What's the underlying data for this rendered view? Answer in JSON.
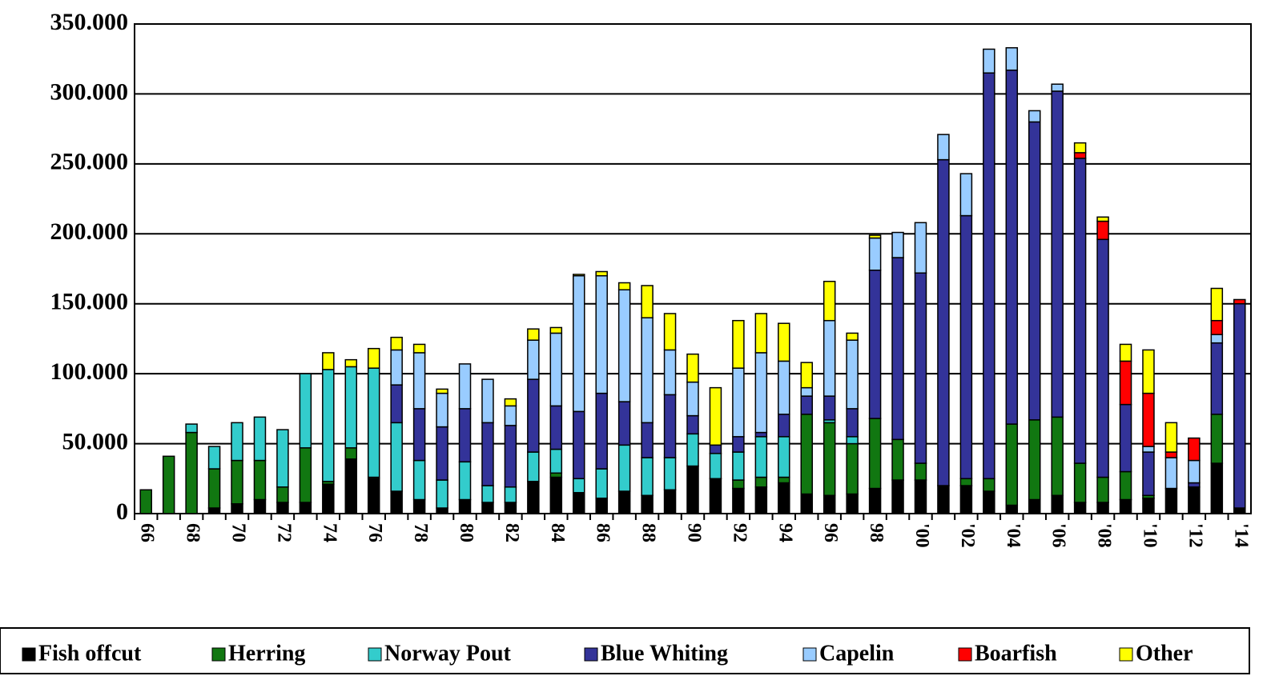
{
  "chart_data": {
    "type": "stacked_bar",
    "categories": [
      "66",
      null,
      "68",
      null,
      "70",
      null,
      "72",
      null,
      "74",
      null,
      "76",
      null,
      "78",
      null,
      "80",
      null,
      "82",
      null,
      "84",
      null,
      "86",
      null,
      "88",
      null,
      "90",
      null,
      "92",
      null,
      "94",
      null,
      "96",
      null,
      "98",
      null,
      "'00",
      null,
      "'02",
      null,
      "'04",
      null,
      "'06",
      null,
      "'08",
      null,
      "'10",
      null,
      "'12",
      null,
      "'14"
    ],
    "ylim": [
      0,
      350000
    ],
    "yticks": [
      0,
      {
        "value": 50000,
        "label": "50.000"
      },
      {
        "value": 100000,
        "label": "100.000"
      },
      {
        "value": 150000,
        "label": "150.000"
      },
      {
        "value": 200000,
        "label": "200.000"
      },
      {
        "value": 250000,
        "label": "250.000"
      },
      {
        "value": 300000,
        "label": "300.000"
      },
      {
        "value": 350000,
        "label": "350.000"
      }
    ],
    "grid": true,
    "legend": "bottom",
    "series": [
      {
        "name": "Fish offcut",
        "color": "#000000",
        "values": [
          0,
          0,
          0,
          4000,
          7000,
          10000,
          8000,
          8000,
          21000,
          39000,
          25000,
          16000,
          10000,
          4000,
          10000,
          8000,
          8000,
          23000,
          26000,
          15000,
          11000,
          16000,
          13000,
          17000,
          34000,
          25000,
          18000,
          19000,
          22000,
          14000,
          13000,
          14000,
          18000,
          24000,
          24000,
          20000,
          20000,
          16000,
          6000,
          10000,
          13000,
          8000,
          8000,
          10000,
          11000,
          18000,
          19000,
          36000,
          4000
        ]
      },
      {
        "name": "Herring",
        "color": "#117711",
        "values": [
          17000,
          41000,
          58000,
          28000,
          31000,
          28000,
          11000,
          39000,
          2000,
          8000,
          1000,
          0,
          0,
          0,
          0,
          0,
          0,
          0,
          3000,
          0,
          0,
          0,
          0,
          0,
          0,
          0,
          6000,
          7000,
          4000,
          57000,
          52000,
          36000,
          50000,
          29000,
          12000,
          0,
          5000,
          9000,
          58000,
          57000,
          56000,
          28000,
          18000,
          20000,
          2000,
          0,
          0,
          35000,
          0
        ]
      },
      {
        "name": "Norway Pout",
        "color": "#33cccc",
        "values": [
          0,
          0,
          6000,
          16000,
          27000,
          31000,
          41000,
          53000,
          80000,
          58000,
          78000,
          49000,
          28000,
          20000,
          27000,
          12000,
          11000,
          21000,
          17000,
          10000,
          21000,
          33000,
          27000,
          23000,
          23000,
          18000,
          20000,
          29000,
          29000,
          0,
          2000,
          5000,
          0,
          0,
          0,
          0,
          0,
          0,
          0,
          0,
          0,
          0,
          0,
          0,
          0,
          0,
          0,
          0,
          0
        ]
      },
      {
        "name": "Blue Whiting",
        "color": "#333399",
        "values": [
          0,
          0,
          0,
          0,
          0,
          0,
          0,
          0,
          0,
          0,
          0,
          27000,
          37000,
          38000,
          38000,
          45000,
          44000,
          52000,
          31000,
          48000,
          54000,
          31000,
          25000,
          45000,
          13000,
          6000,
          11000,
          3000,
          16000,
          13000,
          17000,
          20000,
          106000,
          130000,
          136000,
          233000,
          188000,
          290000,
          253000,
          213000,
          233000,
          218000,
          170000,
          48000,
          31000,
          0,
          3000,
          51000,
          146000
        ]
      },
      {
        "name": "Capelin",
        "color": "#99ccff",
        "values": [
          0,
          0,
          0,
          0,
          0,
          0,
          0,
          0,
          0,
          0,
          0,
          25000,
          40000,
          24000,
          32000,
          31000,
          14000,
          28000,
          52000,
          97000,
          84000,
          80000,
          75000,
          32000,
          24000,
          0,
          49000,
          57000,
          38000,
          6000,
          54000,
          49000,
          23000,
          18000,
          36000,
          18000,
          30000,
          17000,
          16000,
          8000,
          5000,
          0,
          0,
          0,
          4000,
          22000,
          16000,
          6000,
          0
        ]
      },
      {
        "name": "Boarfish",
        "color": "#ff0000",
        "values": [
          0,
          0,
          0,
          0,
          0,
          0,
          0,
          0,
          0,
          0,
          0,
          0,
          0,
          0,
          0,
          0,
          0,
          0,
          0,
          0,
          0,
          0,
          0,
          0,
          0,
          0,
          0,
          0,
          0,
          0,
          0,
          0,
          0,
          0,
          0,
          0,
          0,
          0,
          0,
          0,
          0,
          4000,
          13000,
          31000,
          38000,
          4000,
          16000,
          10000,
          3000
        ]
      },
      {
        "name": "Other",
        "color": "#ffff00",
        "values": [
          0,
          0,
          0,
          0,
          0,
          0,
          0,
          0,
          12000,
          5000,
          14000,
          9000,
          6000,
          3000,
          0,
          0,
          5000,
          8000,
          4000,
          1000,
          3000,
          5000,
          23000,
          26000,
          20000,
          41000,
          34000,
          28000,
          27000,
          18000,
          28000,
          5000,
          2000,
          0,
          0,
          0,
          0,
          0,
          0,
          0,
          0,
          7000,
          3000,
          12000,
          31000,
          21000,
          0,
          23000,
          0
        ]
      }
    ]
  }
}
